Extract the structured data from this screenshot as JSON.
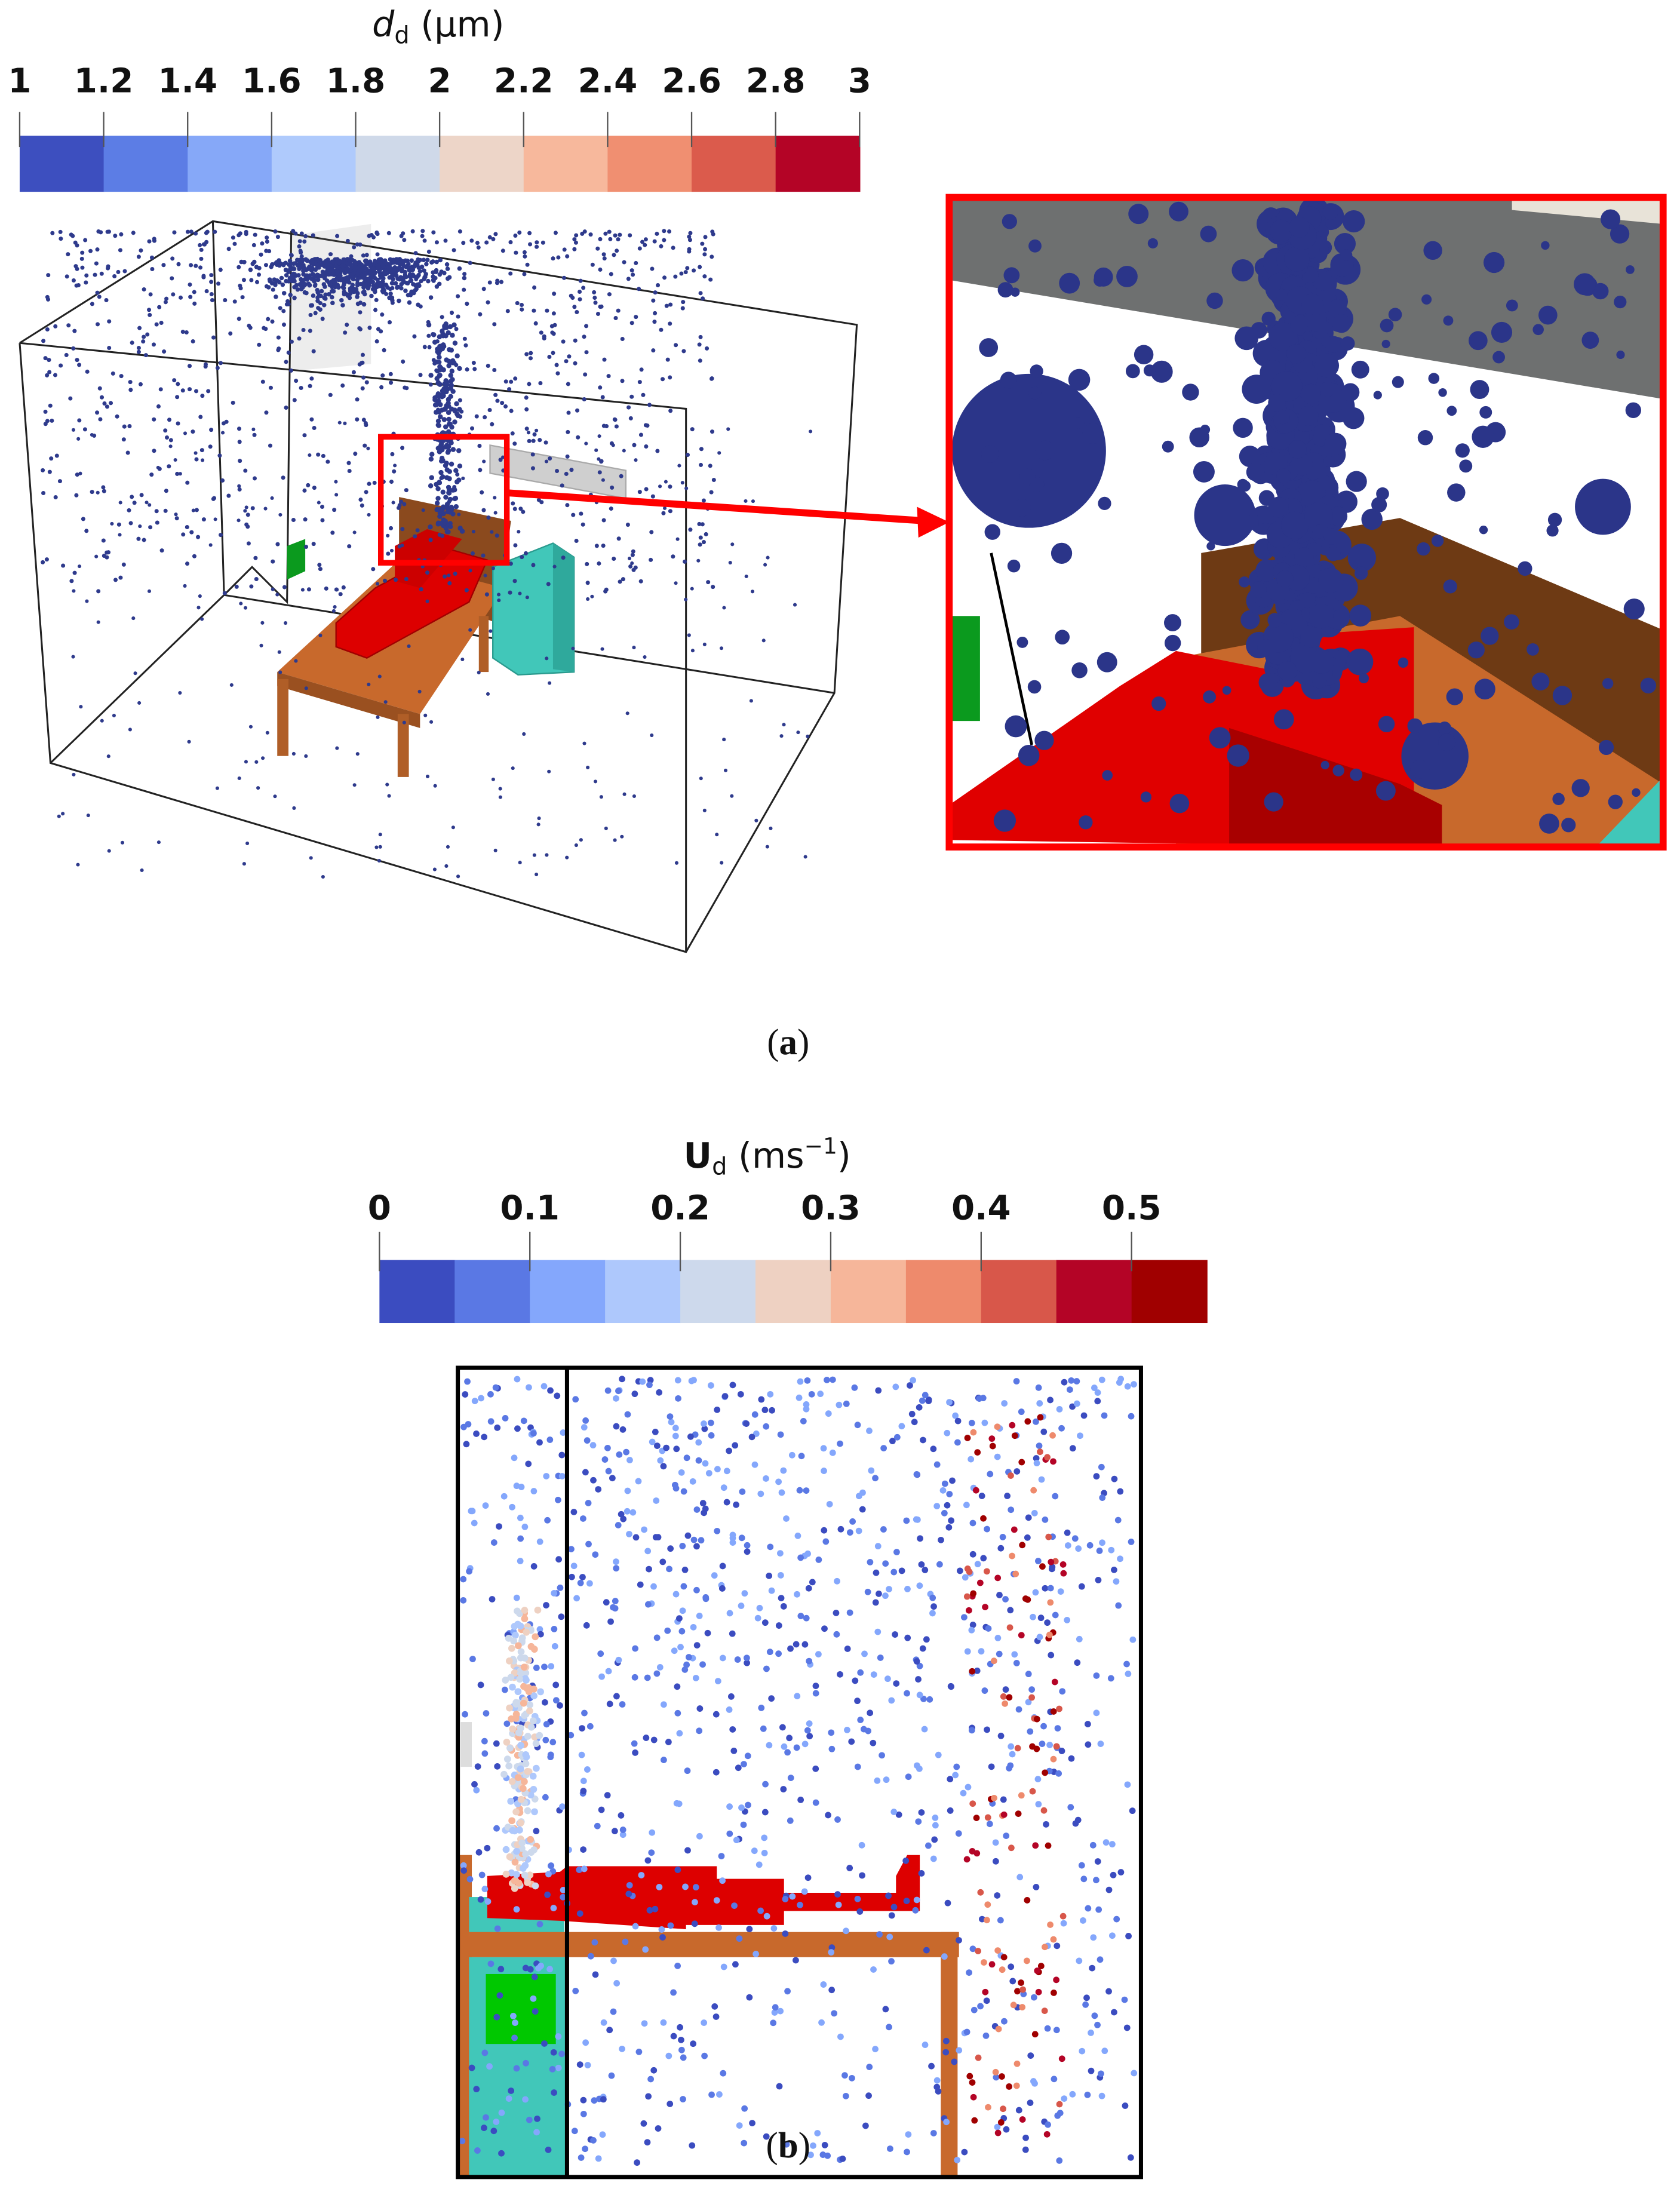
{
  "chart_data": [
    {
      "type": "colorbar",
      "title_symbol": "d",
      "title_subscript": "d",
      "title_unit": "(μm)",
      "clim": [
        1,
        3
      ],
      "xticks": [
        1,
        1.2,
        1.4,
        1.6,
        1.8,
        2,
        2.2,
        2.4,
        2.6,
        2.8,
        3
      ],
      "colors": [
        "#3d4fbf",
        "#5c7de5",
        "#86a8f8",
        "#afcafc",
        "#cfd9e9",
        "#edd5c8",
        "#f7b89c",
        "#f08f71",
        "#db5b4c",
        "#b40426"
      ],
      "caption": {
        "open": "(",
        "label": "a",
        "close": ")"
      }
    },
    {
      "type": "colorbar",
      "title_symbol": "U",
      "title_subscript": "d",
      "title_unit": "(ms",
      "title_exponent": "−1",
      "title_unit_close": ")",
      "clim": [
        0,
        0.55
      ],
      "xticks": [
        0,
        0.1,
        0.2,
        0.3,
        0.4,
        0.5
      ],
      "colors": [
        "#3b4cc0",
        "#5a78e4",
        "#84a7fc",
        "#aec8fc",
        "#cdd9ec",
        "#eed1c2",
        "#f6b69a",
        "#ee8a6c",
        "#d8574a",
        "#b40426",
        "#a00000"
      ],
      "caption": {
        "open": "(",
        "label": "b",
        "close": ")"
      }
    }
  ]
}
